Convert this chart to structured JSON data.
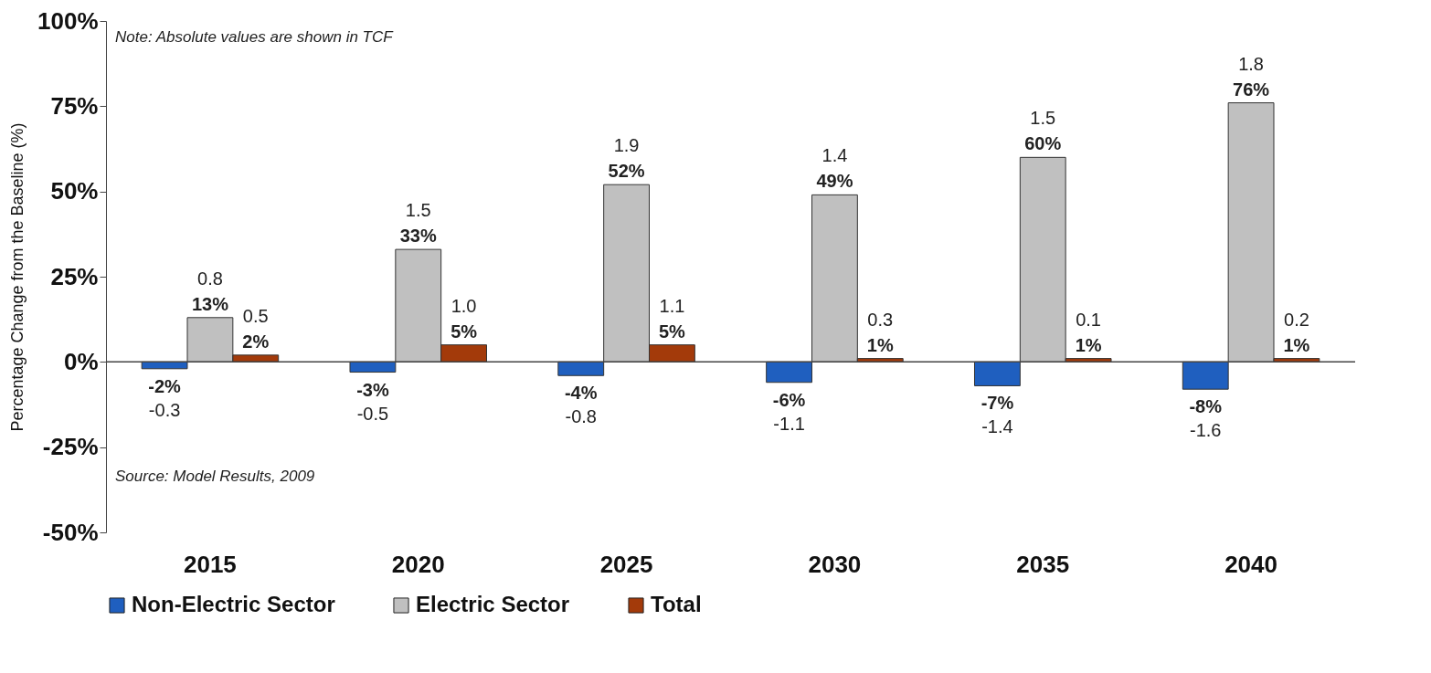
{
  "chart_data": {
    "type": "bar",
    "ylabel": "Percentage Change from the Baseline (%)",
    "categories": [
      "2015",
      "2020",
      "2025",
      "2030",
      "2035",
      "2040"
    ],
    "series": [
      {
        "name": "Non-Electric Sector",
        "color": "#1f5fbf",
        "values": [
          -2,
          -3,
          -4,
          -6,
          -7,
          -8
        ],
        "value_labels": [
          "-2%\n-0.3",
          "-3%\n-0.5",
          "-4%\n-0.8",
          "-6%\n-1.1",
          "-7%\n-1.4",
          "-8%\n-1.6"
        ]
      },
      {
        "name": "Electric Sector",
        "color": "#c0c0c0",
        "values": [
          13,
          33,
          52,
          49,
          60,
          76
        ],
        "value_labels": [
          "0.8\n13%",
          "1.5\n33%",
          "1.9\n52%",
          "1.4\n49%",
          "1.5\n60%",
          "1.8\n76%"
        ]
      },
      {
        "name": "Total",
        "color": "#a33a0a",
        "values": [
          2,
          5,
          5,
          1,
          1,
          1
        ],
        "value_labels": [
          "0.5\n2%",
          "1.0\n5%",
          "1.1\n5%",
          "0.3\n1%",
          "0.1\n1%",
          "0.2\n1%"
        ]
      }
    ],
    "ylim": [
      -50,
      100
    ],
    "yticks": [
      {
        "value": -50,
        "label": "-50%"
      },
      {
        "value": -25,
        "label": "-25%"
      },
      {
        "value": 0,
        "label": "0%"
      },
      {
        "value": 25,
        "label": "25%"
      },
      {
        "value": 50,
        "label": "50%"
      },
      {
        "value": 75,
        "label": "75%"
      },
      {
        "value": 100,
        "label": "100%"
      }
    ],
    "ref_lines": [
      {
        "axis": "y",
        "value": 0
      }
    ],
    "grid": false,
    "legend": "bottom",
    "annotations": [
      "Note: Absolute values are shown in TCF",
      "Source: Model Results, 2009"
    ]
  }
}
